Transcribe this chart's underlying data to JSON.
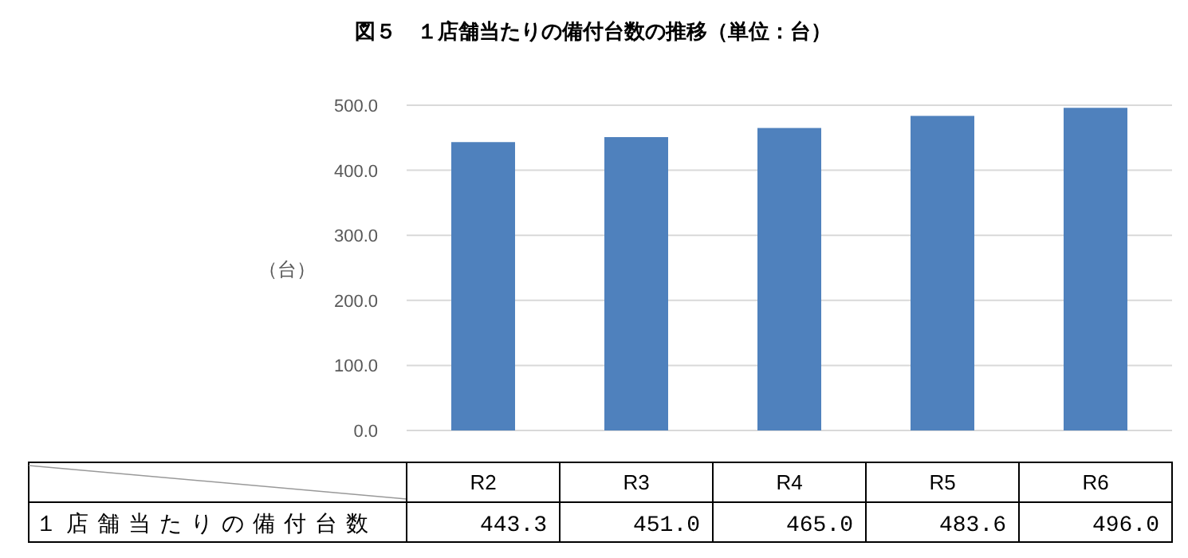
{
  "chart_data": {
    "type": "bar",
    "title": "図５　１店舗当たりの備付台数の推移（単位：台）",
    "ylabel": "（台）",
    "categories": [
      "R2",
      "R3",
      "R4",
      "R5",
      "R6"
    ],
    "series": [
      {
        "name": "１店舗当たりの備付台数",
        "color": "#4f81bd",
        "values": [
          443.3,
          451.0,
          465.0,
          483.6,
          496.0
        ],
        "value_labels": [
          "443.3",
          "451.0",
          "465.0",
          "483.6",
          "496.0"
        ]
      }
    ],
    "ylim": [
      0,
      500
    ],
    "yticks": [
      {
        "value": 0,
        "label": "0.0"
      },
      {
        "value": 100,
        "label": "100.0"
      },
      {
        "value": 200,
        "label": "200.0"
      },
      {
        "value": 300,
        "label": "300.0"
      },
      {
        "value": 400,
        "label": "400.0"
      },
      {
        "value": 500,
        "label": "500.0"
      }
    ],
    "grid": "y"
  }
}
